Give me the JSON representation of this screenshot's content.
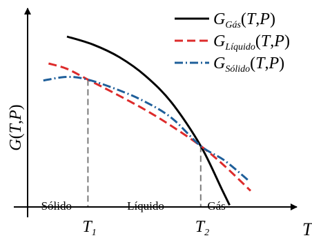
{
  "chart_data": {
    "type": "line",
    "title": "",
    "ylabel": "G(T,P)",
    "xlabel": "T",
    "x_ticks": [
      {
        "x": 2.3,
        "label": "T",
        "sub": "1"
      },
      {
        "x": 6.6,
        "label": "T",
        "sub": "2"
      }
    ],
    "region_labels": [
      {
        "x": 1.1,
        "text": "Sólido"
      },
      {
        "x": 4.5,
        "text": "Líquido"
      },
      {
        "x": 7.2,
        "text": "Gás"
      }
    ],
    "xlim": [
      0,
      10
    ],
    "ylim": [
      0,
      10
    ],
    "grid": false,
    "legend_position": "top-right",
    "series": [
      {
        "name": "G_Gás(T,P)",
        "base": "G",
        "sub": "Gás",
        "color": "#000000",
        "dash": "",
        "points": [
          [
            1.5,
            9.5
          ],
          [
            2.5,
            9.05
          ],
          [
            3.5,
            8.35
          ],
          [
            4.5,
            7.3
          ],
          [
            5.5,
            5.8
          ],
          [
            6.6,
            3.4
          ],
          [
            7.4,
            1.0
          ],
          [
            7.7,
            0.1
          ]
        ]
      },
      {
        "name": "G_Líquido(T,P)",
        "base": "G",
        "sub": "Líquido",
        "color": "#dd2b2b",
        "dash": "12,6",
        "points": [
          [
            0.8,
            8.0
          ],
          [
            1.5,
            7.7
          ],
          [
            2.3,
            7.1
          ],
          [
            3.3,
            6.35
          ],
          [
            4.5,
            5.4
          ],
          [
            5.5,
            4.5
          ],
          [
            6.6,
            3.4
          ],
          [
            7.5,
            2.3
          ],
          [
            8.5,
            0.9
          ]
        ]
      },
      {
        "name": "G_Sólido(T,P)",
        "base": "G",
        "sub": "Sólido",
        "color": "#1f5f9a",
        "dash": "12,4,2,4",
        "points": [
          [
            0.6,
            7.05
          ],
          [
            1.5,
            7.25
          ],
          [
            2.3,
            7.1
          ],
          [
            3.5,
            6.5
          ],
          [
            4.5,
            5.85
          ],
          [
            5.5,
            4.95
          ],
          [
            6.6,
            3.4
          ],
          [
            7.5,
            2.6
          ],
          [
            8.4,
            1.5
          ]
        ]
      }
    ],
    "annotations": [
      {
        "type": "vline",
        "x": 2.3,
        "y": 7.1
      },
      {
        "type": "vline",
        "x": 6.6,
        "y": 3.4
      }
    ]
  }
}
